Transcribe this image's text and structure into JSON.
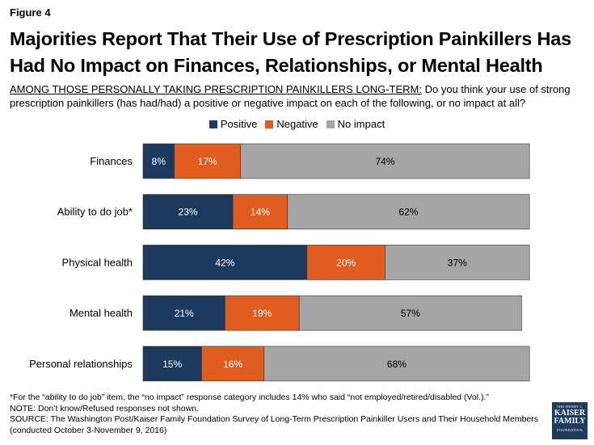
{
  "figure_label": "Figure 4",
  "title_lines": [
    "Majorities Report That Their Use of Prescription Painkillers Has",
    "Had No Impact on Finances, Relationships, or Mental Health"
  ],
  "question": {
    "lead": "AMONG THOSE PERSONALLY TAKING PRESCRIPTION PAINKILLERS LONG-TERM:",
    "text": " Do you think your use of strong prescription painkillers (has had/had) a positive or negative impact on each of the following, or no impact at all?"
  },
  "colors": {
    "positive": "#1b3a5e",
    "negative": "#e05c1f",
    "no_impact": "#a5a5a5"
  },
  "chart_data": {
    "type": "bar",
    "orientation": "horizontal",
    "stacked": true,
    "categories": [
      "Finances",
      "Ability to do job*",
      "Physical health",
      "Mental health",
      "Personal relationships"
    ],
    "series": [
      {
        "name": "Positive",
        "color": "#1b3a5e",
        "values": [
          8,
          23,
          42,
          21,
          15
        ],
        "labels": [
          "8%",
          "23%",
          "42%",
          "21%",
          "15%"
        ]
      },
      {
        "name": "Negative",
        "color": "#e05c1f",
        "values": [
          17,
          14,
          20,
          19,
          16
        ],
        "labels": [
          "17%",
          "14%",
          "20%",
          "19%",
          "16%"
        ]
      },
      {
        "name": "No impact",
        "color": "#a5a5a5",
        "values": [
          74,
          62,
          37,
          57,
          68
        ],
        "labels": [
          "74%",
          "62%",
          "37%",
          "57%",
          "68%"
        ]
      }
    ],
    "xlim": [
      0,
      100
    ],
    "grid": false,
    "legend_position": "top-center"
  },
  "footnotes": [
    "*For the “ability to do job” item, the “no impact” response category includes 14% who said “not employed/retired/disabled (Vol.).”",
    "NOTE: Don’t know/Refused responses not shown.",
    "SOURCE: The Washington Post/Kaiser Family Foundation Survey of Long-Term Prescription Painkiller Users and Their Household Members",
    "(conducted October 3-November 9, 2016)"
  ],
  "logo": {
    "line1": "THE HENRY J.",
    "line2": "KAISER",
    "line3": "FAMILY",
    "line4": "FOUNDATION"
  }
}
